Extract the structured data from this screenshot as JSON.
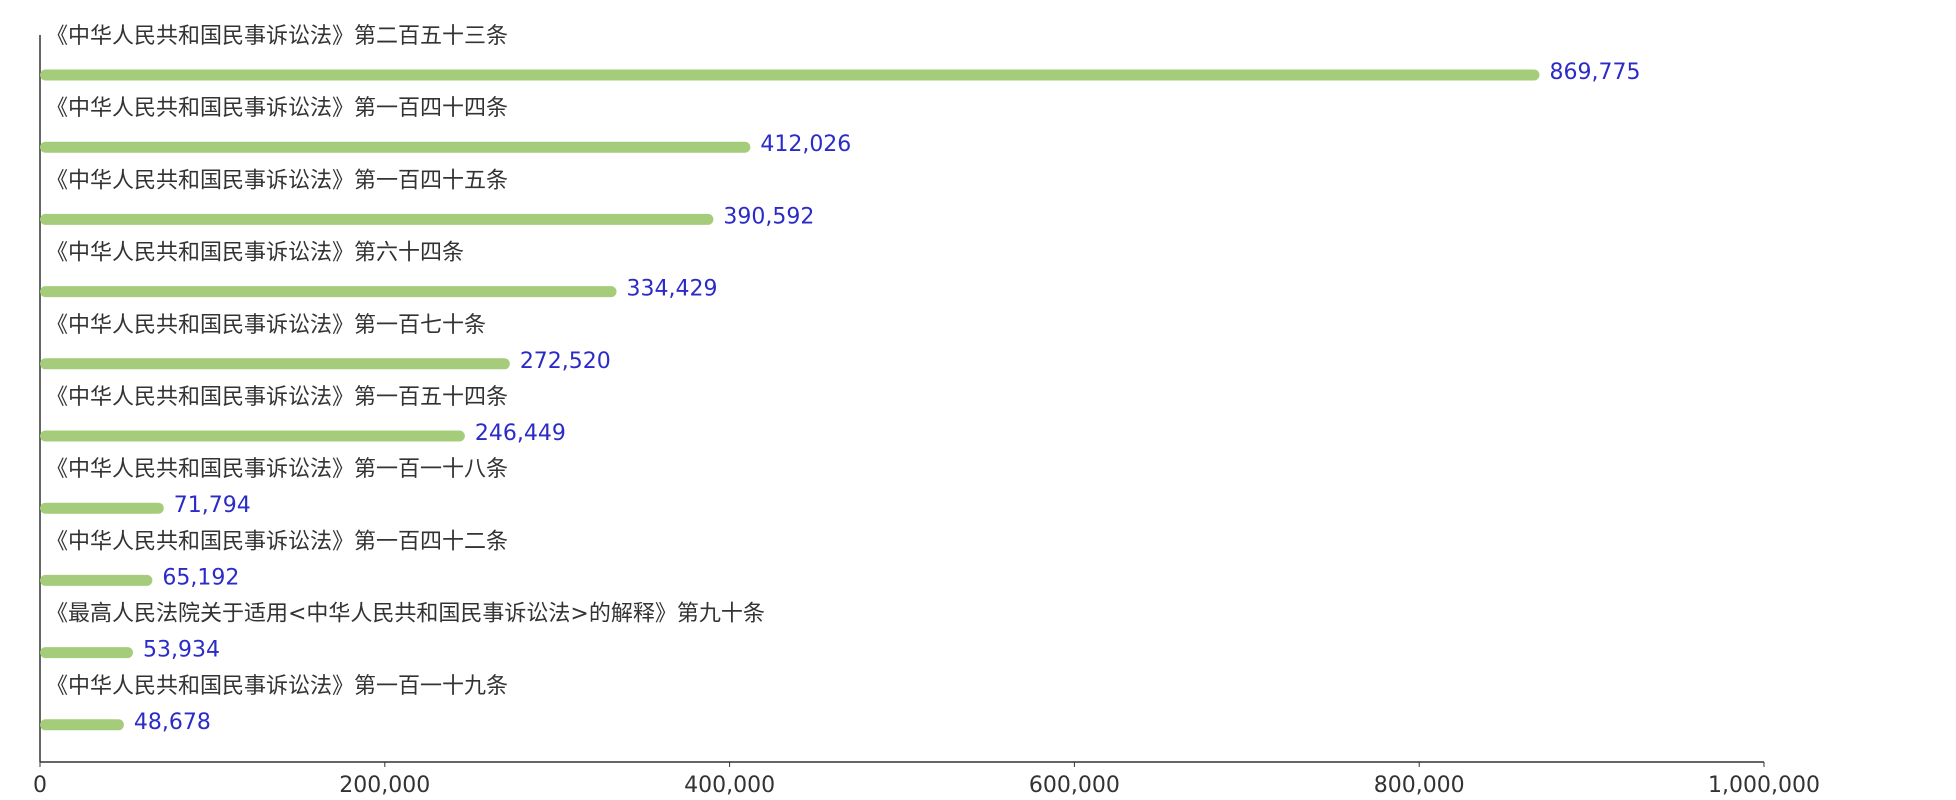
{
  "chart_data": {
    "type": "hbar",
    "categories": [
      "《中华人民共和国民事诉讼法》第二百五十三条",
      "《中华人民共和国民事诉讼法》第一百四十四条",
      "《中华人民共和国民事诉讼法》第一百四十五条",
      "《中华人民共和国民事诉讼法》第六十四条",
      "《中华人民共和国民事诉讼法》第一百七十条",
      "《中华人民共和国民事诉讼法》第一百五十四条",
      "《中华人民共和国民事诉讼法》第一百一十八条",
      "《中华人民共和国民事诉讼法》第一百四十二条",
      "《最高人民法院关于适用<中华人民共和国民事诉讼法>的解释》第九十条",
      "《中华人民共和国民事诉讼法》第一百一十九条"
    ],
    "values": [
      869775,
      412026,
      390592,
      334429,
      272520,
      246449,
      71794,
      65192,
      53934,
      48678
    ],
    "value_labels": [
      "869,775",
      "412,026",
      "390,592",
      "334,429",
      "272,520",
      "246,449",
      "71,794",
      "65,192",
      "53,934",
      "48,678"
    ],
    "color": "#a5cc7a",
    "label_color": "#2b2bc8",
    "xlim": [
      0,
      1000000
    ],
    "xticks": [
      0,
      {
        "value": 200000,
        "label": "200,000"
      },
      {
        "value": 400000,
        "label": "400,000"
      },
      {
        "value": 600000,
        "label": "600,000"
      },
      {
        "value": 800000,
        "label": "800,000"
      },
      {
        "value": 1000000,
        "label": "1,000,000"
      }
    ]
  }
}
